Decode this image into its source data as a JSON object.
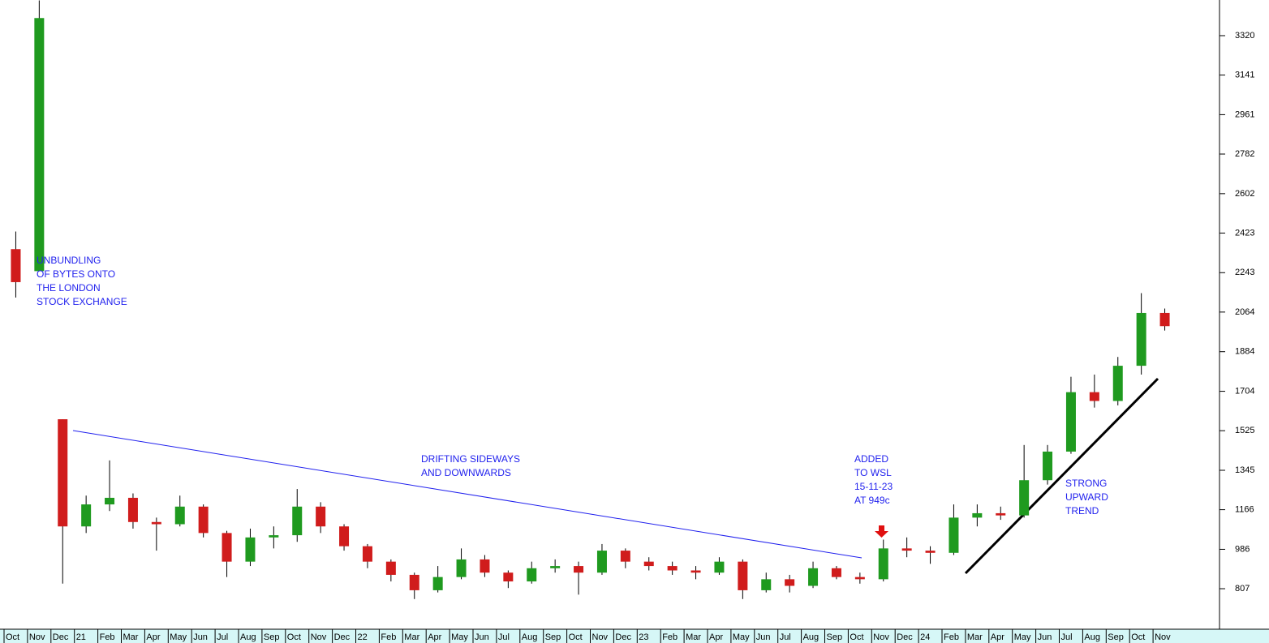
{
  "chart_data": {
    "type": "candlestick",
    "categories": [
      "Oct",
      "Nov",
      "Dec",
      "21",
      "Feb",
      "Mar",
      "Apr",
      "May",
      "Jun",
      "Jul",
      "Aug",
      "Sep",
      "Oct",
      "Nov",
      "Dec",
      "22",
      "Feb",
      "Mar",
      "Apr",
      "May",
      "Jun",
      "Jul",
      "Aug",
      "Sep",
      "Oct",
      "Nov",
      "Dec",
      "23",
      "Feb",
      "Mar",
      "Apr",
      "May",
      "Jun",
      "Jul",
      "Aug",
      "Sep",
      "Oct",
      "Nov",
      "Dec",
      "24",
      "Feb",
      "Mar",
      "Apr",
      "May",
      "Jun",
      "Jul",
      "Aug",
      "Sep",
      "Oct",
      "Nov"
    ],
    "open": [
      2350,
      2250,
      1577,
      1090,
      1190,
      1220,
      1110,
      1100,
      1180,
      1060,
      930,
      1040,
      1050,
      1180,
      1090,
      1000,
      930,
      870,
      800,
      860,
      940,
      880,
      840,
      900,
      910,
      880,
      980,
      930,
      910,
      890,
      880,
      930,
      800,
      850,
      820,
      900,
      860,
      850,
      990,
      980,
      970,
      1130,
      1150,
      1140,
      1300,
      1430,
      1700,
      1660,
      1820,
      2060
    ],
    "high": [
      2430,
      3480,
      1577,
      1230,
      1390,
      1240,
      1130,
      1230,
      1190,
      1070,
      1080,
      1090,
      1260,
      1200,
      1100,
      1010,
      940,
      880,
      910,
      990,
      960,
      890,
      930,
      940,
      930,
      1010,
      990,
      950,
      930,
      910,
      950,
      940,
      880,
      870,
      930,
      910,
      880,
      1030,
      1040,
      1000,
      1190,
      1190,
      1180,
      1460,
      1460,
      1770,
      1780,
      1860,
      2150,
      2080
    ],
    "low": [
      2130,
      2250,
      830,
      1060,
      1160,
      1080,
      980,
      1090,
      1040,
      860,
      910,
      990,
      1020,
      1060,
      980,
      900,
      840,
      760,
      790,
      850,
      860,
      810,
      830,
      880,
      780,
      870,
      900,
      890,
      870,
      850,
      870,
      760,
      790,
      790,
      810,
      850,
      830,
      840,
      950,
      920,
      960,
      1090,
      1120,
      1130,
      1280,
      1420,
      1630,
      1640,
      1780,
      1980
    ],
    "close": [
      2200,
      3400,
      1090,
      1190,
      1220,
      1110,
      1100,
      1180,
      1060,
      930,
      1040,
      1050,
      1180,
      1090,
      1000,
      930,
      870,
      800,
      860,
      940,
      880,
      840,
      900,
      910,
      880,
      980,
      930,
      910,
      890,
      880,
      930,
      800,
      850,
      820,
      900,
      860,
      850,
      990,
      980,
      970,
      1130,
      1150,
      1140,
      1300,
      1430,
      1700,
      1660,
      1820,
      2060,
      2000
    ],
    "up_color": "#1f9a1f",
    "down_color": "#d01c1c",
    "ylim": [
      645,
      3482
    ],
    "yticks": [
      807,
      986,
      1166,
      1345,
      1525,
      1704,
      1884,
      2064,
      2243,
      2423,
      2602,
      2782,
      2961,
      3141,
      3320
    ],
    "annotations": [
      {
        "lines": [
          "UNBUNDLING",
          "OF BYTES ONTO",
          "THE LONDON",
          "STOCK EXCHANGE"
        ]
      },
      {
        "lines": [
          "DRIFTING SIDEWAYS",
          "AND DOWNWARDS"
        ]
      },
      {
        "lines": [
          "ADDED",
          "TO WSL",
          "15-11-23",
          "AT 949c"
        ]
      },
      {
        "lines": [
          "STRONG",
          "UPWARD",
          "TREND"
        ]
      }
    ]
  }
}
